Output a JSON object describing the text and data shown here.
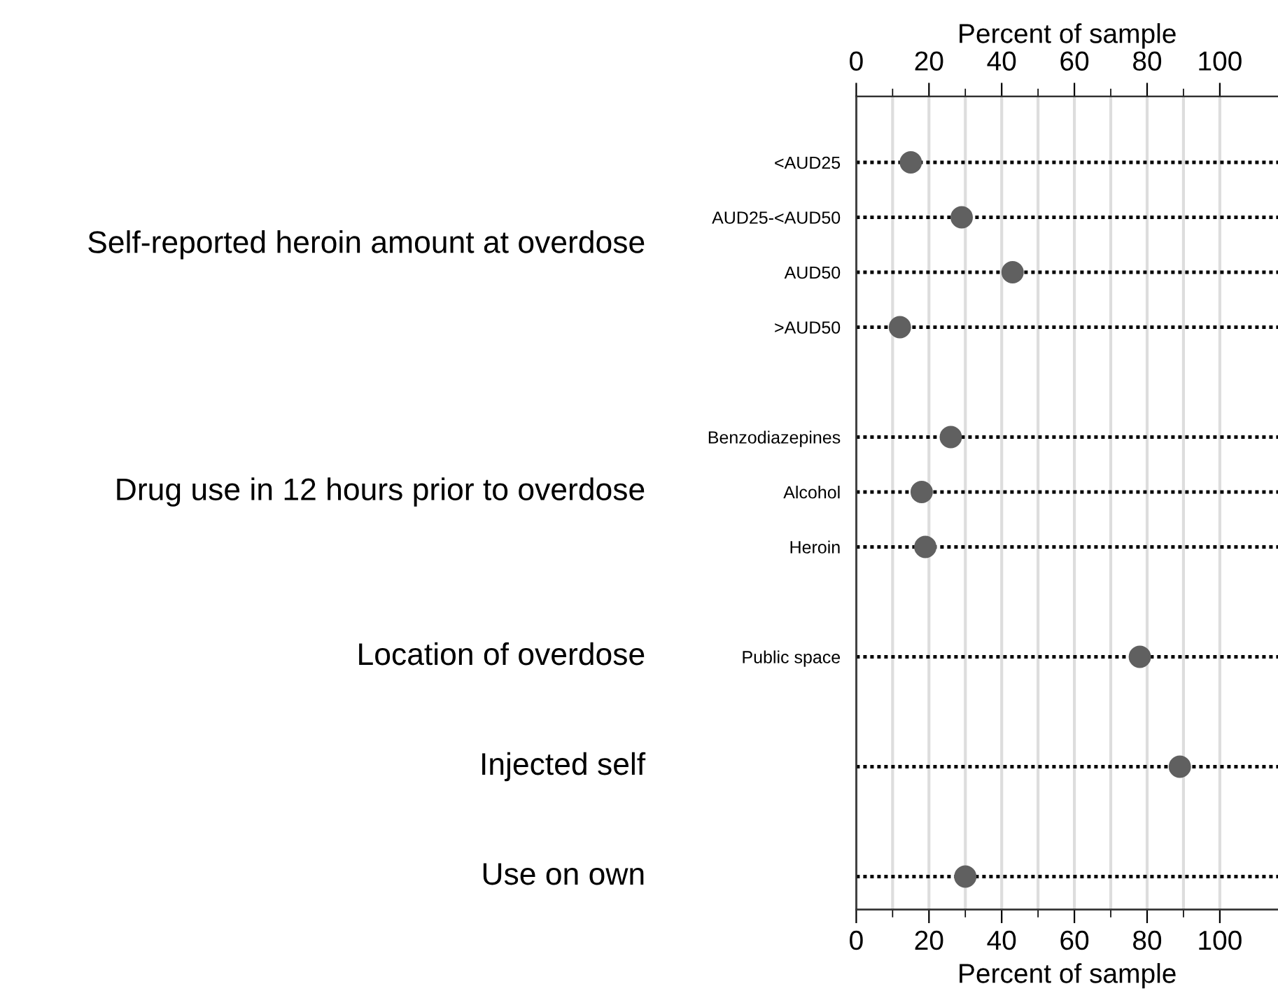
{
  "chart_data": {
    "type": "scatter",
    "orientation": "horizontal",
    "categories": [
      "<AUD25",
      "AUD25-<AUD50",
      "AUD50",
      ">AUD50",
      null,
      "Benzodiazepines",
      "Alcohol",
      "Heroin",
      null,
      "Public space",
      null,
      null,
      null,
      null
    ],
    "series": [
      {
        "color": "#606060",
        "values": [
          15,
          29,
          43,
          12,
          null,
          26,
          18,
          19,
          null,
          78,
          null,
          89,
          null,
          30
        ]
      }
    ],
    "xlabel": "Percent of sample",
    "x2label": "Percent of sample",
    "xlim": [
      0,
      116
    ],
    "xticks": [
      0,
      {
        "value": 10,
        "label": null
      },
      20,
      {
        "value": 30,
        "label": null
      },
      40,
      {
        "value": 50,
        "label": null
      },
      60,
      {
        "value": 70,
        "label": null
      },
      80,
      {
        "value": 90,
        "label": null
      },
      100
    ],
    "x2lim": [
      0,
      116
    ],
    "x2ticks": [
      0,
      {
        "value": 10,
        "label": null
      },
      20,
      {
        "value": 30,
        "label": null
      },
      40,
      {
        "value": 50,
        "label": null
      },
      60,
      {
        "value": 70,
        "label": null
      },
      80,
      {
        "value": 90,
        "label": null
      },
      100
    ],
    "annotations": [
      "Self-reported heroin amount at overdose",
      "Drug use in 12 hours prior to overdose",
      "Location of overdose",
      "Injected self",
      "Use on own"
    ],
    "grid": true,
    "marker": "circle",
    "legend": false
  }
}
